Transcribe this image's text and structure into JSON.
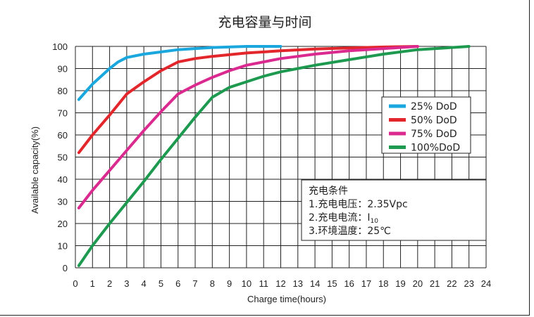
{
  "chart_data": {
    "type": "line",
    "title": "充电容量与时间",
    "xlabel": "Charge time(hours)",
    "ylabel": "Available capacity(%)",
    "xlim": [
      0,
      24
    ],
    "ylim": [
      0,
      100
    ],
    "xticks": [
      0,
      1,
      2,
      3,
      4,
      5,
      6,
      7,
      8,
      9,
      10,
      11,
      12,
      13,
      14,
      15,
      16,
      17,
      18,
      19,
      20,
      21,
      22,
      23,
      24
    ],
    "yticks": [
      0,
      10,
      20,
      30,
      40,
      50,
      60,
      70,
      80,
      90,
      100
    ],
    "grid": true,
    "legend_position": "right-middle",
    "series": [
      {
        "name": "25%  DoD",
        "color": "#1aa7dd",
        "x": [
          0.2,
          1,
          2,
          2.5,
          3,
          4,
          5,
          6,
          7,
          8,
          10,
          12
        ],
        "y": [
          76,
          83,
          90,
          93,
          95,
          96.5,
          97.5,
          98.5,
          99,
          99.5,
          100,
          100
        ]
      },
      {
        "name": "50%  DoD",
        "color": "#e3262b",
        "x": [
          0.2,
          1,
          2,
          3,
          4,
          5,
          6,
          7,
          8,
          10,
          12,
          14,
          16,
          18,
          20
        ],
        "y": [
          52,
          60,
          69,
          78.5,
          84,
          89,
          93,
          94.5,
          95.5,
          97,
          98,
          98.8,
          99.3,
          99.7,
          100
        ]
      },
      {
        "name": "75%  DoD",
        "color": "#db2a8f",
        "x": [
          0.2,
          1,
          2,
          3,
          4,
          5,
          6,
          7,
          8,
          9,
          10,
          12,
          14,
          16,
          18,
          20
        ],
        "y": [
          27,
          35,
          44,
          53,
          62,
          70.5,
          78.5,
          82.5,
          86,
          89,
          91.5,
          94.5,
          96.5,
          98,
          99,
          100
        ]
      },
      {
        "name": "100%DoD",
        "color": "#1e9a50",
        "x": [
          0.2,
          1,
          2,
          3,
          4,
          5,
          6,
          7,
          8,
          9,
          10,
          11,
          12,
          13,
          14,
          16,
          18,
          20,
          22,
          23
        ],
        "y": [
          1,
          10,
          20,
          29.5,
          39,
          49,
          58.5,
          68,
          77,
          81.5,
          84,
          86.5,
          88.5,
          90,
          91.5,
          94,
          96.5,
          98.5,
          99.5,
          100
        ]
      }
    ]
  },
  "conditions": {
    "heading": "充电条件",
    "line1": "1.充电电压：2.35Vpc",
    "line2_prefix": "2.充电电流：",
    "line2_current": "I",
    "line2_subscript": "10",
    "line3": "3.环境温度：25℃"
  }
}
